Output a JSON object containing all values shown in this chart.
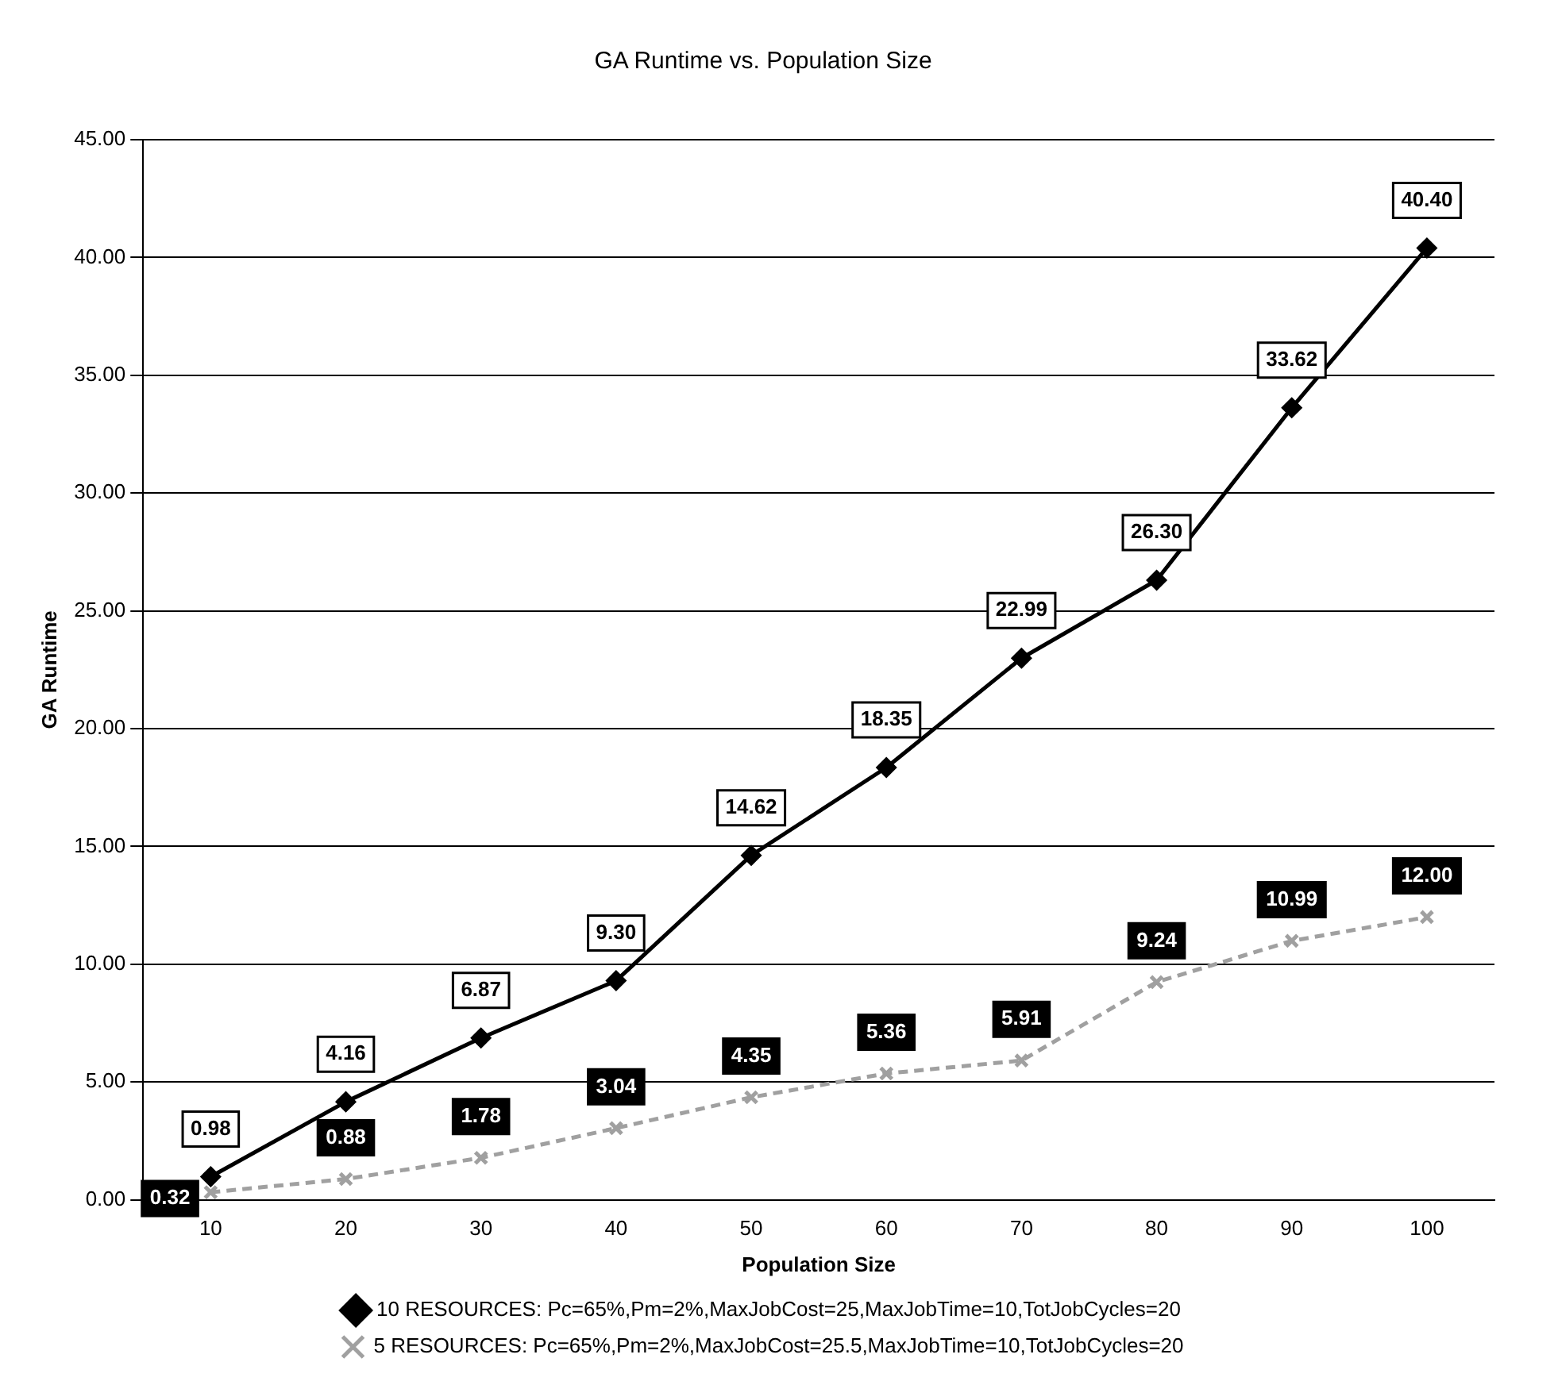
{
  "chart_data": {
    "type": "line",
    "title": "GA Runtime vs. Population Size",
    "xlabel": "Population Size",
    "ylabel": "GA Runtime",
    "categories": [
      "10",
      "20",
      "30",
      "40",
      "50",
      "60",
      "70",
      "80",
      "90",
      "100"
    ],
    "series": [
      {
        "name": "10 RESOURCES: Pc=65%,Pm=2%,MaxJobCost=25,MaxJobTime=10,TotJobCycles=20",
        "color": "#000000",
        "marker": "diamond",
        "line_style": "solid",
        "values": [
          0.98,
          4.16,
          6.87,
          9.3,
          14.62,
          18.35,
          22.99,
          26.3,
          33.62,
          40.4
        ],
        "value_labels": [
          "0.98",
          "4.16",
          "6.87",
          "9.30",
          "14.62",
          "18.35",
          "22.99",
          "26.30",
          "33.62",
          "40.40"
        ]
      },
      {
        "name": "5 RESOURCES: Pc=65%,Pm=2%,MaxJobCost=25.5,MaxJobTime=10,TotJobCycles=20",
        "color": "#a0a0a0",
        "marker": "cross",
        "line_style": "dashed",
        "values": [
          0.32,
          0.88,
          1.78,
          3.04,
          4.35,
          5.36,
          5.91,
          9.24,
          10.99,
          12.0
        ],
        "value_labels": [
          "0.32",
          "0.88",
          "1.78",
          "3.04",
          "4.35",
          "5.36",
          "5.91",
          "9.24",
          "10.99",
          "12.00"
        ]
      }
    ],
    "ylim": [
      0,
      45
    ],
    "yticks": [
      {
        "value": 0,
        "label": "0.00"
      },
      {
        "value": 5,
        "label": "5.00"
      },
      {
        "value": 10,
        "label": "10.00"
      },
      {
        "value": 15,
        "label": "15.00"
      },
      {
        "value": 20,
        "label": "20.00"
      },
      {
        "value": 25,
        "label": "25.00"
      },
      {
        "value": 30,
        "label": "30.00"
      },
      {
        "value": 35,
        "label": "35.00"
      },
      {
        "value": 40,
        "label": "40.00"
      },
      {
        "value": 45,
        "label": "45.00"
      }
    ],
    "grid": "y",
    "legend": "bottom"
  }
}
